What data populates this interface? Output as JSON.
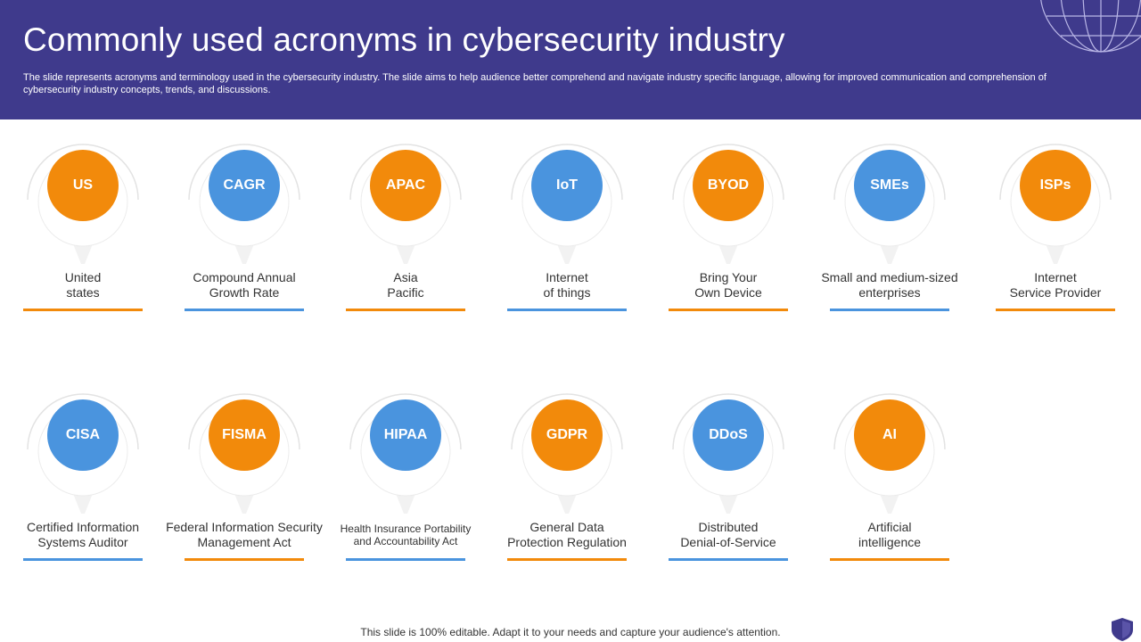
{
  "header": {
    "title": "Commonly used acronyms in cybersecurity industry",
    "description": "The slide represents acronyms and terminology used in the cybersecurity industry. The slide aims to help audience better comprehend and navigate industry specific language, allowing for improved communication and comprehension of cybersecurity industry concepts, trends, and discussions."
  },
  "colors": {
    "header_bg": "#3f3a8c",
    "orange": "#f28a0b",
    "blue": "#4a94de"
  },
  "acronyms": [
    {
      "abbr": "US",
      "line1": "United",
      "line2": "states",
      "color": "orange"
    },
    {
      "abbr": "CAGR",
      "line1": "Compound Annual",
      "line2": "Growth Rate",
      "color": "blue"
    },
    {
      "abbr": "APAC",
      "line1": "Asia",
      "line2": "Pacific",
      "color": "orange"
    },
    {
      "abbr": "IoT",
      "line1": "Internet",
      "line2": "of things",
      "color": "blue"
    },
    {
      "abbr": "BYOD",
      "line1": "Bring Your",
      "line2": "Own Device",
      "color": "orange"
    },
    {
      "abbr": "SMEs",
      "line1": "Small and medium-sized",
      "line2": "enterprises",
      "color": "blue"
    },
    {
      "abbr": "ISPs",
      "line1": "Internet",
      "line2": "Service Provider",
      "color": "orange"
    },
    {
      "abbr": "CISA",
      "line1": "Certified Information",
      "line2": "Systems Auditor",
      "color": "blue"
    },
    {
      "abbr": "FISMA",
      "line1": "Federal Information Security",
      "line2": "Management Act",
      "color": "orange"
    },
    {
      "abbr": "HIPAA",
      "line1": "Health Insurance Portability",
      "line2": "and Accountability Act",
      "color": "blue"
    },
    {
      "abbr": "GDPR",
      "line1": "General Data",
      "line2": "Protection Regulation",
      "color": "orange"
    },
    {
      "abbr": "DDoS",
      "line1": "Distributed",
      "line2": "Denial-of-Service",
      "color": "blue"
    },
    {
      "abbr": "AI",
      "line1": "Artificial",
      "line2": "intelligence",
      "color": "orange"
    }
  ],
  "footer": {
    "note": "This slide is 100% editable. Adapt it to your needs and capture your audience's attention."
  }
}
